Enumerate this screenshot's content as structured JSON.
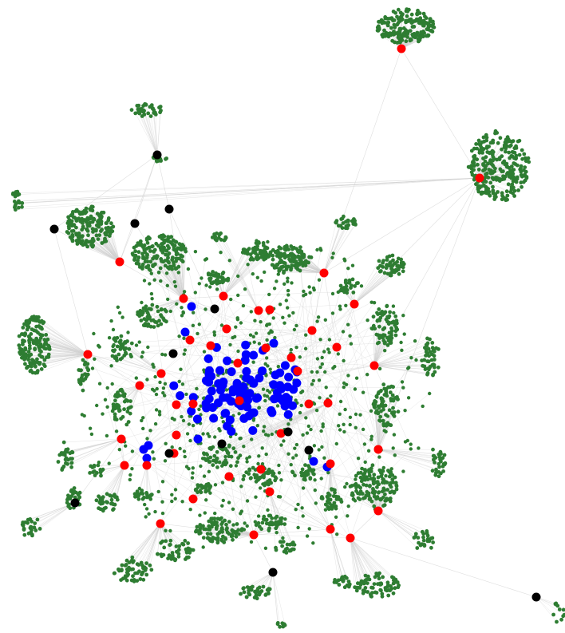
{
  "figure": {
    "type": "network-graph",
    "background": "#ffffff",
    "edge_color": "#d0d0d0",
    "legend": "none",
    "title": ""
  },
  "node_types": [
    {
      "id": "red",
      "color": "#ff0000",
      "role": "hub"
    },
    {
      "id": "black",
      "color": "#000000",
      "role": "hub"
    },
    {
      "id": "blue",
      "color": "#0000ff",
      "role": "core"
    },
    {
      "id": "green",
      "color": "#2e7d32",
      "role": "leaf"
    }
  ]
}
